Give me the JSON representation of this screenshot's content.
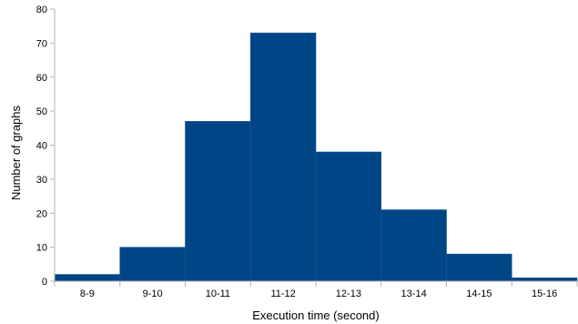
{
  "chart_data": {
    "type": "bar",
    "title": "",
    "xlabel": "Execution time (second)",
    "ylabel": "Number of graphs",
    "categories": [
      "8-9",
      "9-10",
      "10-11",
      "11-12",
      "12-13",
      "13-14",
      "14-15",
      "15-16"
    ],
    "values": [
      2,
      10,
      47,
      73,
      38,
      21,
      8,
      1
    ],
    "ylim": [
      0,
      80
    ],
    "yticks": [
      0,
      10,
      20,
      30,
      40,
      50,
      60,
      70,
      80
    ],
    "grid": false,
    "legend": "none",
    "bar_color": "#004586",
    "bar_gap": 0
  }
}
